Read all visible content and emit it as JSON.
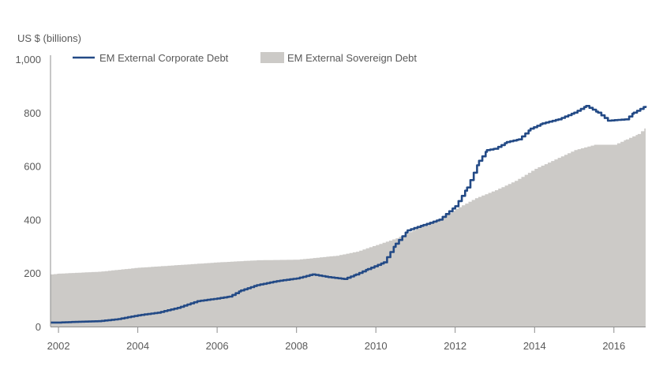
{
  "chart_data": {
    "type": "area",
    "ylabel": "US $ (billions)",
    "ylim": [
      0,
      1000
    ],
    "xlim": [
      2001.8,
      2016.8
    ],
    "grid": false,
    "legend_position": "top",
    "y_ticks": [
      {
        "value": 0,
        "label": "0"
      },
      {
        "value": 200,
        "label": "200"
      },
      {
        "value": 400,
        "label": "400"
      },
      {
        "value": 600,
        "label": "600"
      },
      {
        "value": 800,
        "label": "800"
      },
      {
        "value": 1000,
        "label": "1,000"
      }
    ],
    "x_ticks": [
      {
        "value": 2002,
        "label": "2002"
      },
      {
        "value": 2004,
        "label": "2004"
      },
      {
        "value": 2006,
        "label": "2006"
      },
      {
        "value": 2008,
        "label": "2008"
      },
      {
        "value": 2010,
        "label": "2010"
      },
      {
        "value": 2012,
        "label": "2012"
      },
      {
        "value": 2014,
        "label": "2014"
      },
      {
        "value": 2016,
        "label": "2016"
      }
    ],
    "series": [
      {
        "name": "EM External Corporate Debt",
        "kind": "line",
        "color": "#234a86",
        "points": [
          [
            2001.8,
            15
          ],
          [
            2002.0,
            15
          ],
          [
            2002.5,
            18
          ],
          [
            2003.0,
            20
          ],
          [
            2003.5,
            28
          ],
          [
            2004.0,
            42
          ],
          [
            2004.5,
            52
          ],
          [
            2005.0,
            70
          ],
          [
            2005.5,
            95
          ],
          [
            2006.0,
            105
          ],
          [
            2006.3,
            112
          ],
          [
            2006.6,
            135
          ],
          [
            2007.0,
            155
          ],
          [
            2007.5,
            170
          ],
          [
            2008.0,
            180
          ],
          [
            2008.4,
            195
          ],
          [
            2008.8,
            185
          ],
          [
            2009.2,
            178
          ],
          [
            2009.5,
            195
          ],
          [
            2009.8,
            215
          ],
          [
            2010.2,
            240
          ],
          [
            2010.5,
            310
          ],
          [
            2010.8,
            360
          ],
          [
            2011.2,
            380
          ],
          [
            2011.6,
            400
          ],
          [
            2012.0,
            450
          ],
          [
            2012.3,
            520
          ],
          [
            2012.6,
            620
          ],
          [
            2012.8,
            660
          ],
          [
            2013.0,
            665
          ],
          [
            2013.3,
            690
          ],
          [
            2013.6,
            700
          ],
          [
            2013.9,
            740
          ],
          [
            2014.2,
            760
          ],
          [
            2014.6,
            775
          ],
          [
            2015.0,
            800
          ],
          [
            2015.3,
            825
          ],
          [
            2015.6,
            800
          ],
          [
            2015.85,
            770
          ],
          [
            2016.3,
            775
          ],
          [
            2016.5,
            800
          ],
          [
            2016.8,
            825
          ]
        ]
      },
      {
        "name": "EM External Sovereign Debt",
        "kind": "area",
        "color": "#cccac7",
        "points": [
          [
            2001.8,
            195
          ],
          [
            2002.0,
            198
          ],
          [
            2003.0,
            205
          ],
          [
            2004.0,
            220
          ],
          [
            2005.0,
            230
          ],
          [
            2006.0,
            240
          ],
          [
            2007.0,
            248
          ],
          [
            2008.0,
            250
          ],
          [
            2009.0,
            265
          ],
          [
            2009.5,
            280
          ],
          [
            2010.0,
            305
          ],
          [
            2010.5,
            330
          ],
          [
            2011.0,
            365
          ],
          [
            2011.5,
            395
          ],
          [
            2012.0,
            440
          ],
          [
            2012.5,
            480
          ],
          [
            2013.0,
            510
          ],
          [
            2013.5,
            545
          ],
          [
            2014.0,
            590
          ],
          [
            2014.5,
            625
          ],
          [
            2015.0,
            660
          ],
          [
            2015.5,
            680
          ],
          [
            2016.0,
            680
          ],
          [
            2016.3,
            700
          ],
          [
            2016.6,
            720
          ],
          [
            2016.8,
            745
          ]
        ]
      }
    ]
  }
}
